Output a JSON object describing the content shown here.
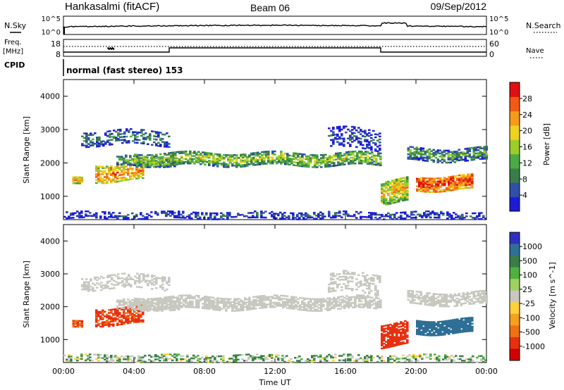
{
  "header": {
    "station": "Hankasalmi (fitACF)",
    "beam": "Beam 06",
    "date": "09/Sep/2012"
  },
  "top_panels": {
    "nsky_label": "N.Sky",
    "nsky_ticks": [
      "10^5",
      "10^0"
    ],
    "nsearch_label": "N.Search",
    "nsearch_ticks": [
      "10^5",
      "10^0"
    ],
    "freq_label": "Freq.",
    "freq_unit": "[MHz]",
    "freq_ticks": [
      "18",
      "8"
    ],
    "nave_label": "Nave",
    "nave_ticks": [
      "60",
      "0"
    ],
    "cpid_label": "CPID",
    "cpid_text": "normal (fast stereo) 153"
  },
  "colors": {
    "power": [
      "#1c1cd6",
      "#2f4fa8",
      "#3a7d4a",
      "#4caa45",
      "#9acd2a",
      "#f0d020",
      "#f59a1a",
      "#f05a14",
      "#e01010"
    ],
    "velocity": [
      "#3030c0",
      "#2f6f95",
      "#3a7d4a",
      "#4fb040",
      "#a0d060",
      "#c8c8c0",
      "#ffd23a",
      "#f5a020",
      "#f07015",
      "#e83010",
      "#d00000"
    ]
  },
  "chart_data": [
    {
      "type": "heatmap",
      "name": "power",
      "ylabel": "Slant Range [km]",
      "xlabel": "Time UT",
      "x_ticks": [
        "00:00",
        "04:00",
        "08:00",
        "12:00",
        "16:00",
        "20:00",
        "00:00"
      ],
      "y_ticks": [
        1000,
        2000,
        3000,
        4000
      ],
      "ylim": [
        300,
        4500
      ],
      "xlim_hours": [
        0,
        24
      ],
      "colorbar_label": "Power [dB]",
      "colorbar_ticks": [
        "4",
        "8",
        "12",
        "16",
        "20",
        "24",
        "28"
      ],
      "zlim": [
        0,
        30
      ],
      "bands": [
        {
          "t": [
            0.0,
            24.0
          ],
          "center": 420,
          "width": 200,
          "level": 6,
          "density": 0.45
        },
        {
          "t": [
            0.5,
            1.1
          ],
          "center": 1450,
          "width": 220,
          "level": 22,
          "density": 0.8
        },
        {
          "t": [
            1.8,
            4.5
          ],
          "center": 1700,
          "width": 500,
          "level": 24,
          "density": 0.7
        },
        {
          "t": [
            1.0,
            6.0
          ],
          "center": 2750,
          "width": 450,
          "level": 9,
          "density": 0.45
        },
        {
          "t": [
            3.0,
            6.5
          ],
          "center": 2050,
          "width": 300,
          "level": 12,
          "density": 0.6
        },
        {
          "t": [
            4.0,
            18.0
          ],
          "center": 2100,
          "width": 380,
          "level": 16,
          "density": 0.7
        },
        {
          "t": [
            15.0,
            18.0
          ],
          "center": 2700,
          "width": 600,
          "level": 6,
          "density": 0.4
        },
        {
          "t": [
            18.0,
            19.5
          ],
          "center": 1150,
          "width": 700,
          "level": 20,
          "density": 0.8
        },
        {
          "t": [
            19.5,
            24.0
          ],
          "center": 2250,
          "width": 400,
          "level": 12,
          "density": 0.7
        },
        {
          "t": [
            20.0,
            23.2
          ],
          "center": 1400,
          "width": 450,
          "level": 28,
          "density": 0.85
        }
      ]
    },
    {
      "type": "heatmap",
      "name": "velocity",
      "ylabel": "Slant Range [km]",
      "xlabel": "Time UT",
      "x_ticks": [
        "00:00",
        "04:00",
        "08:00",
        "12:00",
        "16:00",
        "20:00",
        "00:00"
      ],
      "y_ticks": [
        1000,
        2000,
        3000,
        4000
      ],
      "ylim": [
        300,
        4500
      ],
      "xlim_hours": [
        0,
        24
      ],
      "colorbar_label": "Velocity [m s^-1]",
      "colorbar_ticks": [
        "1000",
        "500",
        "100",
        "25",
        "-25",
        "-100",
        "-500",
        "-1000"
      ],
      "zlim": [
        -1000,
        1000
      ],
      "bands": [
        {
          "t": [
            0.0,
            24.0
          ],
          "center": 420,
          "width": 200,
          "level": 50,
          "density": 0.45
        },
        {
          "t": [
            0.5,
            1.1
          ],
          "center": 1450,
          "width": 220,
          "level": -300,
          "density": 0.8
        },
        {
          "t": [
            1.8,
            4.5
          ],
          "center": 1700,
          "width": 500,
          "level": -350,
          "density": 0.7
        },
        {
          "t": [
            1.0,
            6.0
          ],
          "center": 2750,
          "width": 450,
          "level": 0,
          "density": 0.4
        },
        {
          "t": [
            3.0,
            6.5
          ],
          "center": 2050,
          "width": 300,
          "level": 0,
          "density": 0.6
        },
        {
          "t": [
            4.0,
            18.0
          ],
          "center": 2100,
          "width": 380,
          "level": 0,
          "density": 0.7
        },
        {
          "t": [
            15.0,
            18.0
          ],
          "center": 2700,
          "width": 600,
          "level": 0,
          "density": 0.4
        },
        {
          "t": [
            18.0,
            19.5
          ],
          "center": 1150,
          "width": 700,
          "level": -400,
          "density": 0.8
        },
        {
          "t": [
            19.5,
            24.0
          ],
          "center": 2250,
          "width": 400,
          "level": 0,
          "density": 0.7
        },
        {
          "t": [
            20.0,
            23.2
          ],
          "center": 1400,
          "width": 450,
          "level": 600,
          "density": 0.85
        }
      ]
    }
  ]
}
